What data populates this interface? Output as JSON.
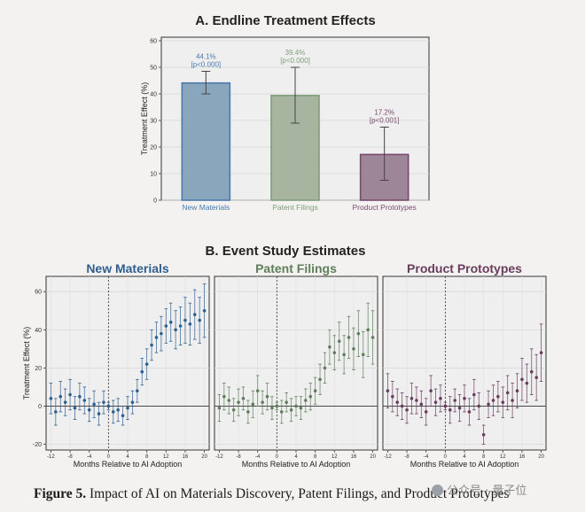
{
  "chart_data": [
    {
      "type": "bar",
      "title": "A. Endline Treatment Effects",
      "ylabel": "Treatment Effect (%)",
      "ylim": [
        0,
        60
      ],
      "yticks": [
        0,
        10,
        20,
        30,
        40,
        50,
        60
      ],
      "grid": true,
      "categories": [
        "New Materials",
        "Patent Filings",
        "Product Prototypes"
      ],
      "values": [
        44.1,
        39.4,
        17.2
      ],
      "ci_low": [
        40.0,
        29.0,
        7.5
      ],
      "ci_high": [
        48.5,
        50.0,
        27.5
      ],
      "value_labels": [
        "44.1%",
        "39.4%",
        "17.2%"
      ],
      "p_labels": [
        "[p<0.000]",
        "[p<0.000]",
        "[p<0.001]"
      ],
      "colors": [
        "#4a7bac",
        "#7f9e7a",
        "#7a4a6e"
      ],
      "fill_colors": [
        "#8aa6bd",
        "#a7b49f",
        "#9e8699"
      ]
    },
    {
      "type": "scatter",
      "title": "B. Event Study Estimates",
      "xlabel": "Months Relative to AI Adoption",
      "ylabel": "Treatment Effect (%)",
      "xlim": [
        -13,
        21
      ],
      "ylim": [
        -23,
        68
      ],
      "xticks": [
        -12,
        -8,
        -4,
        0,
        4,
        8,
        12,
        16,
        20
      ],
      "yticks": [
        -20,
        0,
        20,
        40,
        60
      ],
      "x": [
        -12,
        -11,
        -10,
        -9,
        -8,
        -7,
        -6,
        -5,
        -4,
        -3,
        -2,
        -1,
        0,
        1,
        2,
        3,
        4,
        5,
        6,
        7,
        8,
        9,
        10,
        11,
        12,
        13,
        14,
        15,
        16,
        17,
        18,
        19,
        20
      ],
      "series": [
        {
          "name": "New Materials",
          "color": "#2f5f8f",
          "values": [
            4,
            -3,
            5,
            2,
            6,
            -1,
            5,
            3,
            -2,
            1,
            -4,
            2,
            0,
            -3,
            -2,
            -5,
            -1,
            2,
            8,
            18,
            22,
            32,
            36,
            38,
            42,
            44,
            40,
            42,
            45,
            43,
            48,
            45,
            50
          ],
          "err": [
            8,
            7,
            8,
            7,
            8,
            6,
            7,
            7,
            6,
            7,
            6,
            6,
            2,
            6,
            6,
            5,
            6,
            6,
            6,
            7,
            8,
            8,
            8,
            9,
            9,
            10,
            10,
            10,
            12,
            11,
            13,
            12,
            14
          ]
        },
        {
          "name": "Patent Filings",
          "color": "#5f7f5a",
          "values": [
            -1,
            5,
            3,
            -2,
            2,
            4,
            -3,
            1,
            8,
            2,
            5,
            -1,
            0,
            -3,
            2,
            -2,
            0,
            -1,
            3,
            5,
            8,
            14,
            20,
            31,
            28,
            34,
            27,
            36,
            30,
            38,
            27,
            40,
            36
          ],
          "err": [
            7,
            7,
            7,
            6,
            7,
            6,
            6,
            7,
            8,
            6,
            7,
            6,
            2,
            6,
            5,
            6,
            5,
            6,
            6,
            7,
            7,
            8,
            8,
            9,
            9,
            10,
            10,
            11,
            11,
            12,
            12,
            14,
            14
          ]
        },
        {
          "name": "Product Prototypes",
          "color": "#6a3d5e",
          "values": [
            8,
            5,
            2,
            0,
            -2,
            4,
            3,
            1,
            -3,
            8,
            2,
            4,
            0,
            -2,
            3,
            -1,
            4,
            -3,
            6,
            0,
            -15,
            1,
            3,
            5,
            2,
            7,
            3,
            8,
            14,
            12,
            18,
            15,
            28
          ],
          "err": [
            9,
            8,
            7,
            7,
            7,
            8,
            7,
            7,
            7,
            8,
            7,
            7,
            2,
            7,
            6,
            7,
            7,
            7,
            8,
            7,
            5,
            7,
            8,
            8,
            8,
            9,
            9,
            9,
            11,
            10,
            12,
            12,
            15
          ]
        }
      ]
    }
  ],
  "caption": {
    "label": "Figure 5.",
    "text": "Impact of AI on Materials Discovery, Patent Filings, and Product Prototypes"
  },
  "watermark": "公众号 · 量子位"
}
